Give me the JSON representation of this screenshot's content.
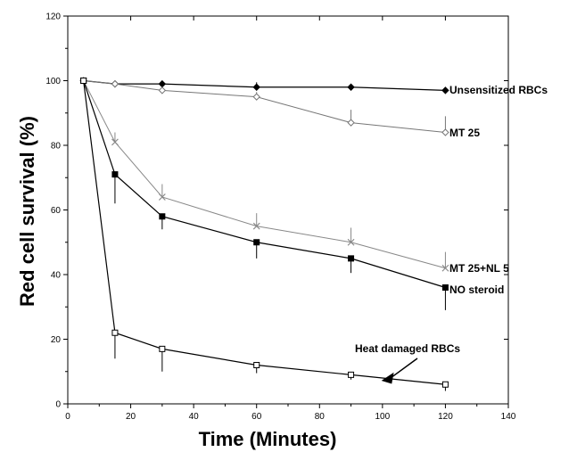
{
  "chart_data": {
    "type": "line",
    "title": "",
    "xlabel": "Time  (Minutes)",
    "ylabel": "Red cell survival (%)",
    "xlim": [
      0,
      140
    ],
    "ylim": [
      0,
      120
    ],
    "xticks": [
      0,
      20,
      40,
      60,
      80,
      100,
      120,
      140
    ],
    "yticks": [
      0,
      20,
      40,
      60,
      80,
      100,
      120
    ],
    "grid": false,
    "legend": "inline labels at line ends",
    "series": [
      {
        "name": "Unsensitized RBCs",
        "color": "#000000",
        "marker": "filled-diamond",
        "x": [
          5,
          15,
          30,
          60,
          90,
          120
        ],
        "y": [
          100,
          99,
          99,
          98,
          98,
          97
        ],
        "err": [
          0,
          1,
          0,
          1.5,
          0,
          0
        ]
      },
      {
        "name": "MT  25",
        "color": "#777777",
        "marker": "open-diamond",
        "x": [
          5,
          15,
          30,
          60,
          90,
          120
        ],
        "y": [
          100,
          99,
          97,
          95,
          87,
          84
        ],
        "err": [
          0,
          0,
          0,
          1.5,
          4,
          5
        ]
      },
      {
        "name": "MT  25+NL  5",
        "color": "#888888",
        "marker": "x",
        "x": [
          5,
          15,
          30,
          60,
          90,
          120
        ],
        "y": [
          100,
          81,
          64,
          55,
          50,
          42
        ],
        "err": [
          0,
          3,
          4,
          4,
          4.5,
          5
        ]
      },
      {
        "name": "NO  steroid",
        "color": "#000000",
        "marker": "filled-square",
        "x": [
          5,
          15,
          30,
          60,
          90,
          120
        ],
        "y": [
          100,
          71,
          58,
          50,
          45,
          36
        ],
        "err": [
          0,
          9,
          4,
          5,
          4.5,
          7
        ]
      },
      {
        "name": "Heat  damaged  RBCs",
        "color": "#000000",
        "marker": "open-square",
        "x": [
          5,
          15,
          30,
          60,
          90,
          120
        ],
        "y": [
          100,
          22,
          17,
          12,
          9,
          6
        ],
        "err": [
          0,
          8,
          7,
          2.5,
          1.5,
          2
        ]
      }
    ]
  }
}
